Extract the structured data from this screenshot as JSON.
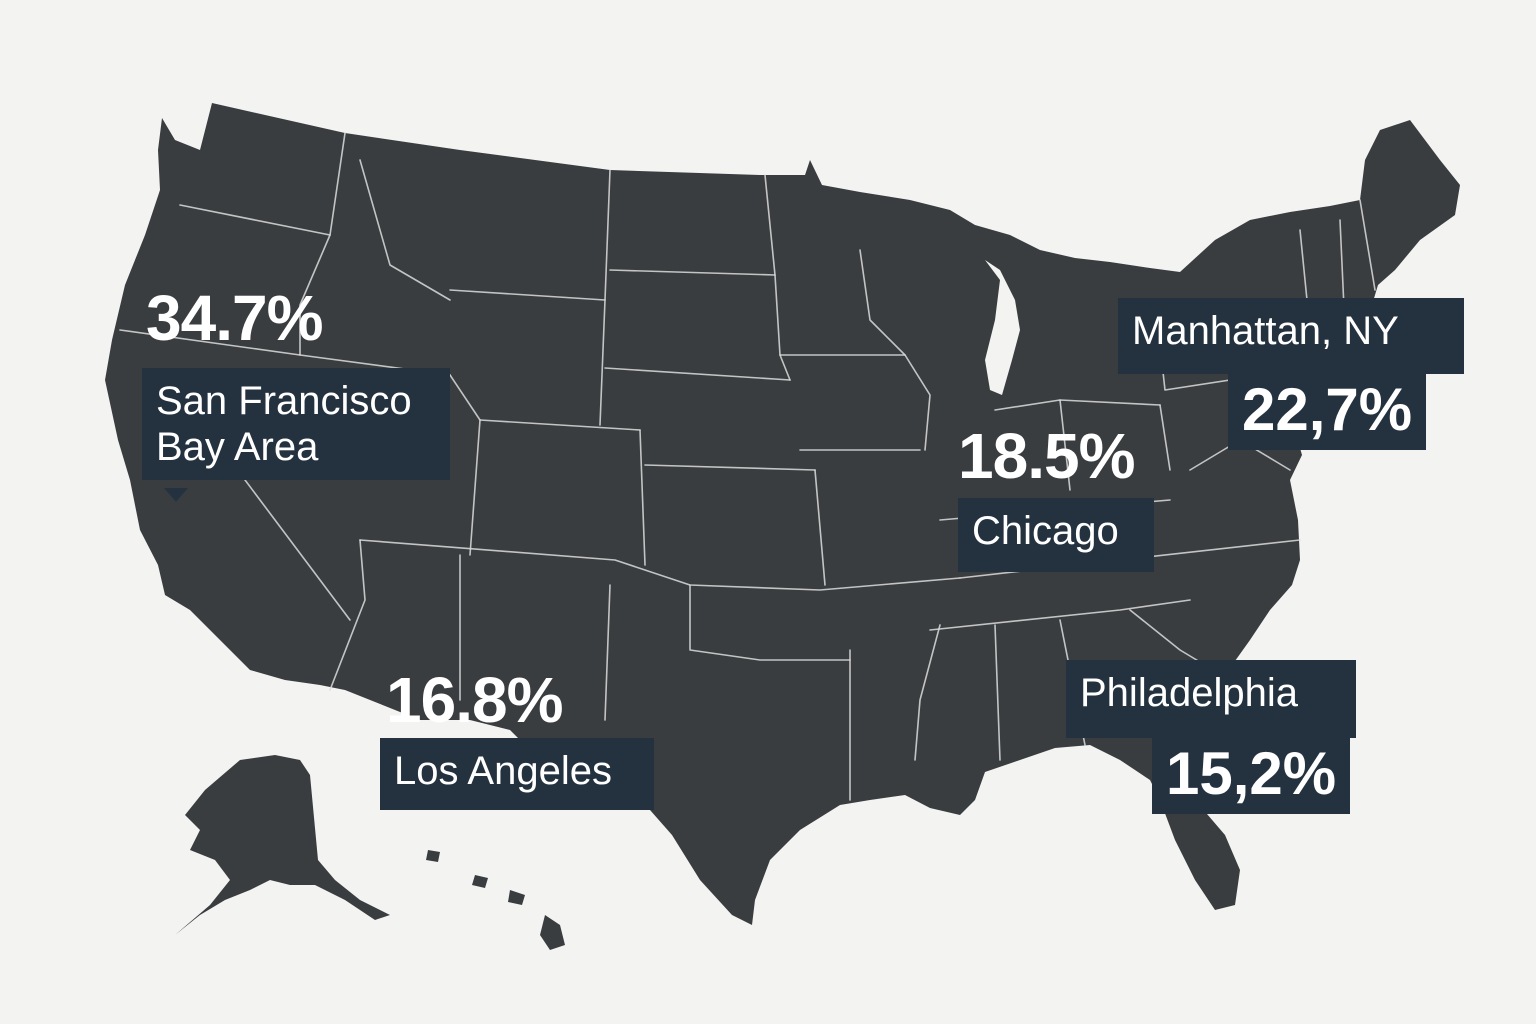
{
  "colors": {
    "background": "#f3f3f2",
    "land": "#3a3d40",
    "borders": "#dcdcdc",
    "label_box": "#243240",
    "text": "#ffffff"
  },
  "callouts": [
    {
      "id": "sf",
      "value": "34.7%",
      "label_line1": "San Francisco",
      "label_line2": "Bay Area"
    },
    {
      "id": "la",
      "value": "16.8%",
      "label_line1": "Los Angeles"
    },
    {
      "id": "chi",
      "value": "18.5%",
      "label_line1": "Chicago"
    },
    {
      "id": "ny",
      "value": "22,7%",
      "label_line1": "Manhattan, NY"
    },
    {
      "id": "phl",
      "value": "15,2%",
      "label_line1": "Philadelphia"
    }
  ]
}
